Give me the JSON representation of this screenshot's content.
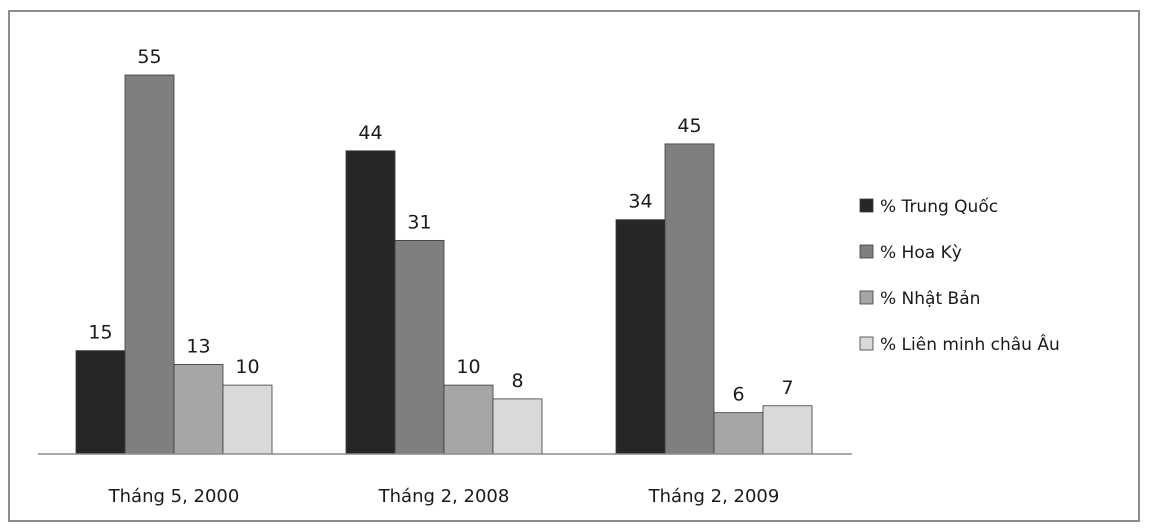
{
  "chart_data": {
    "type": "bar",
    "categories": [
      "Tháng 5, 2000",
      "Tháng 2, 2008",
      "Tháng 2, 2009"
    ],
    "series": [
      {
        "name": "% Trung Quốc",
        "values": [
          15,
          44,
          34
        ],
        "color": "#262626"
      },
      {
        "name": "% Hoa Kỳ",
        "values": [
          55,
          31,
          45
        ],
        "color": "#7f7f7f"
      },
      {
        "name": "% Nhật Bản",
        "values": [
          13,
          10,
          6
        ],
        "color": "#a6a6a6"
      },
      {
        "name": "% Liên minh châu Âu",
        "values": [
          10,
          8,
          7
        ],
        "color": "#d9d9d9"
      }
    ],
    "ylim": [
      0,
      55
    ],
    "grid": false,
    "legend_position": "right",
    "data_labels": true
  }
}
